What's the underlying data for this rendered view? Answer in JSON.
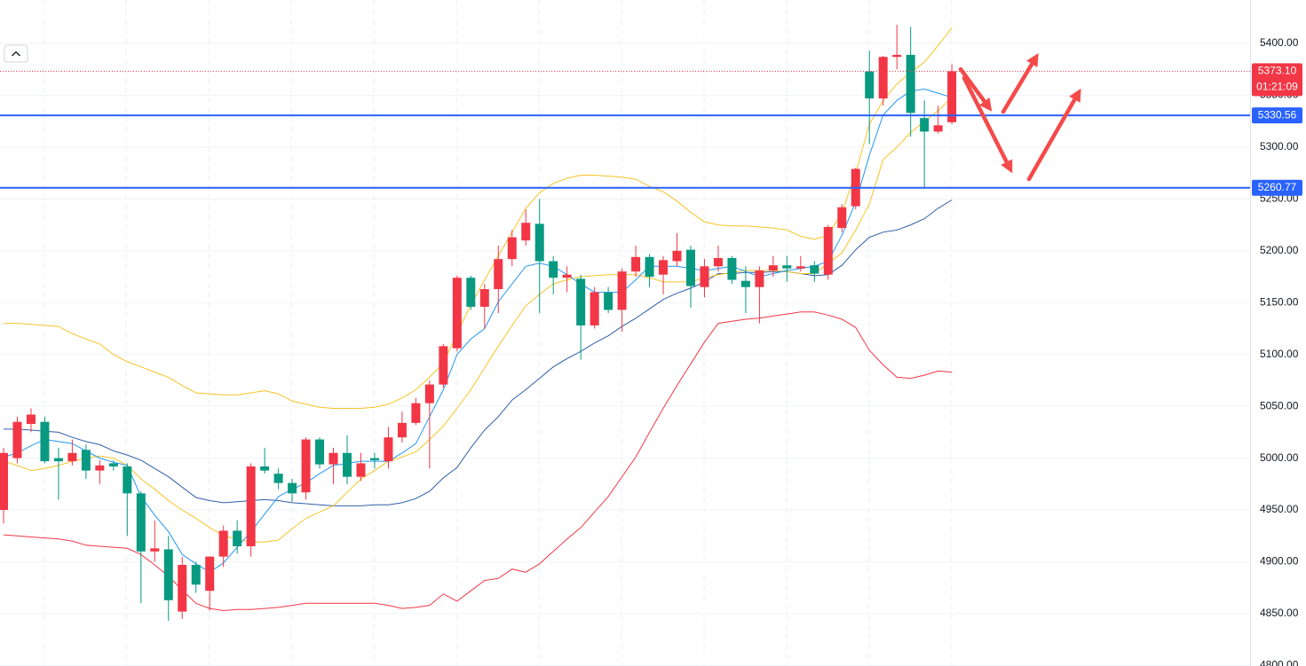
{
  "chart_data": {
    "type": "candlestick",
    "ylim": [
      4799.5,
      5441.9
    ],
    "yticks": [
      {
        "value": 4800,
        "label": "4800.00"
      },
      {
        "value": 4850,
        "label": "4850.00"
      },
      {
        "value": 4900,
        "label": "4900.00"
      },
      {
        "value": 4950,
        "label": "4950.00"
      },
      {
        "value": 5000,
        "label": "5000.00"
      },
      {
        "value": 5050,
        "label": "5050.00"
      },
      {
        "value": 5100,
        "label": "5100.00"
      },
      {
        "value": 5150,
        "label": "5150.00"
      },
      {
        "value": 5200,
        "label": "5200.00"
      },
      {
        "value": 5250,
        "label": "5250.00"
      },
      {
        "value": 5300,
        "label": "5300.00"
      },
      {
        "value": 5350,
        "label": "5350.00"
      },
      {
        "value": 5400,
        "label": "5400.00"
      }
    ],
    "grid": true,
    "up_color": "#f23645",
    "down_color": "#089981",
    "open": [
      4950,
      5000,
      5033,
      5035,
      5000,
      4997,
      5008,
      4988,
      4995,
      4992,
      4966,
      4910,
      4912,
      4852,
      4897,
      4872,
      4905,
      4930,
      4915,
      4992,
      4985,
      4976,
      4967,
      5018,
      4994,
      5005,
      4982,
      5000,
      4997,
      5020,
      5034,
      5053,
      5071,
      5106,
      5174,
      5146,
      5163,
      5192,
      5210,
      5226,
      5190,
      5174,
      5173,
      5128,
      5160,
      5143,
      5180,
      5194,
      5177,
      5190,
      5201,
      5165,
      5185,
      5193,
      5171,
      5165,
      5181,
      5186,
      5183,
      5186,
      5177,
      5222,
      5243,
      5373,
      5347,
      5387,
      5389,
      5328,
      5315,
      5324
    ],
    "high": [
      5010,
      5040,
      5048,
      5040,
      5010,
      5018,
      5013,
      4998,
      4998,
      4995,
      4968,
      4940,
      4925,
      4905,
      4900,
      4905,
      4935,
      4940,
      4995,
      5010,
      4990,
      4980,
      5020,
      5020,
      5010,
      5022,
      5005,
      5005,
      5030,
      5045,
      5058,
      5075,
      5110,
      5176,
      5176,
      5168,
      5205,
      5220,
      5240,
      5250,
      5195,
      5185,
      5177,
      5165,
      5165,
      5183,
      5205,
      5197,
      5195,
      5217,
      5205,
      5192,
      5205,
      5195,
      5185,
      5185,
      5195,
      5195,
      5195,
      5190,
      5225,
      5245,
      5280,
      5393,
      5388,
      5418,
      5416,
      5345,
      5340,
      5380
    ],
    "low": [
      4937,
      4995,
      5025,
      4995,
      4960,
      4993,
      4980,
      4975,
      4988,
      4925,
      4860,
      4900,
      4843,
      4845,
      4870,
      4853,
      4895,
      4908,
      4905,
      4985,
      4970,
      4958,
      4960,
      4990,
      4975,
      4975,
      4978,
      4990,
      4990,
      5015,
      5032,
      4990,
      5068,
      5103,
      5143,
      5125,
      5140,
      5185,
      5205,
      5140,
      5158,
      5160,
      5095,
      5125,
      5140,
      5122,
      5175,
      5165,
      5158,
      5185,
      5145,
      5155,
      5180,
      5168,
      5140,
      5130,
      5175,
      5170,
      5180,
      5170,
      5172,
      5218,
      5240,
      5303,
      5340,
      5375,
      5310,
      5260,
      5313,
      5322
    ],
    "close": [
      5005,
      5035,
      5042,
      4997,
      4997,
      5005,
      4988,
      4993,
      4992,
      4966,
      4910,
      4913,
      4863,
      4897,
      4878,
      4905,
      4930,
      4915,
      4992,
      4988,
      4976,
      4966,
      5018,
      4994,
      5005,
      4982,
      4995,
      4998,
      5020,
      5034,
      5053,
      5071,
      5108,
      5174,
      5146,
      5163,
      5192,
      5213,
      5227,
      5190,
      5174,
      5177,
      5128,
      5160,
      5143,
      5180,
      5194,
      5175,
      5191,
      5200,
      5166,
      5185,
      5193,
      5172,
      5165,
      5181,
      5186,
      5183,
      5185,
      5178,
      5223,
      5242,
      5279,
      5347,
      5387,
      5389,
      5333,
      5315,
      5321,
      5373.1
    ],
    "lines": [
      {
        "color": "#f7c325",
        "values": [
          5130,
          5130,
          5129,
          5128,
          5127,
          5120,
          5115,
          5110,
          5100,
          5093,
          5088,
          5083,
          5078,
          5070,
          5063,
          5062,
          5061,
          5061,
          5063,
          5065,
          5062,
          5055,
          5052,
          5049,
          5048,
          5048,
          5048,
          5049,
          5052,
          5058,
          5066,
          5078,
          5092,
          5120,
          5148,
          5172,
          5195,
          5218,
          5241,
          5256,
          5265,
          5270,
          5273,
          5273,
          5272,
          5271,
          5269,
          5262,
          5257,
          5248,
          5237,
          5228,
          5225,
          5224,
          5224,
          5223,
          5222,
          5220,
          5214,
          5211,
          5215,
          5237,
          5275,
          5322,
          5345,
          5361,
          5372,
          5382,
          5398,
          5415
        ]
      },
      {
        "color": "#f23645",
        "values": [
          4926,
          4925,
          4924,
          4923,
          4922,
          4920,
          4916,
          4915,
          4914,
          4913,
          4907,
          4897,
          4886,
          4873,
          4860,
          4855,
          4853,
          4854,
          4854,
          4855,
          4856,
          4858,
          4860,
          4860,
          4860,
          4860,
          4860,
          4860,
          4858,
          4855,
          4856,
          4858,
          4869,
          4862,
          4872,
          4882,
          4884,
          4893,
          4890,
          4898,
          4910,
          4922,
          4933,
          4948,
          4963,
          4982,
          5001,
          5025,
          5048,
          5070,
          5091,
          5112,
          5130,
          5132,
          5134,
          5135,
          5137,
          5139,
          5141,
          5141,
          5138,
          5134,
          5126,
          5104,
          5090,
          5078,
          5077,
          5080,
          5084,
          5083
        ]
      },
      {
        "color": "#2f5fa8",
        "values": [
          5028,
          5028,
          5027,
          5026,
          5025,
          5020,
          5016,
          5013,
          5007,
          5003,
          4998,
          4990,
          4982,
          4972,
          4962,
          4959,
          4957,
          4958,
          4959,
          4960,
          4959,
          4957,
          4956,
          4955,
          4954,
          4954,
          4954,
          4955,
          4955,
          4957,
          4961,
          4968,
          4981,
          4991,
          5010,
          5027,
          5040,
          5056,
          5066,
          5077,
          5088,
          5096,
          5103,
          5111,
          5118,
          5127,
          5135,
          5144,
          5153,
          5159,
          5164,
          5170,
          5178,
          5178,
          5179,
          5179,
          5180,
          5180,
          5178,
          5176,
          5177,
          5186,
          5201,
          5213,
          5218,
          5220,
          5225,
          5231,
          5241,
          5249
        ]
      },
      {
        "color": "#f7c325",
        "values": [
          4997,
          4993,
          4988,
          4990,
          4993,
          4997,
          5000,
          5002,
          5000,
          4993,
          4980,
          4970,
          4959,
          4950,
          4942,
          4933,
          4925,
          4922,
          4919,
          4919,
          4921,
          4932,
          4942,
          4948,
          4954,
          4967,
          4980,
          4988,
          4997,
          5001,
          5006,
          5018,
          5031,
          5048,
          5066,
          5087,
          5108,
          5128,
          5147,
          5158,
          5168,
          5172,
          5175,
          5176,
          5177,
          5177,
          5177,
          5174,
          5170,
          5170,
          5170,
          5174,
          5177,
          5179,
          5181,
          5181,
          5181,
          5180,
          5178,
          5178,
          5188,
          5198,
          5220,
          5245,
          5288,
          5300,
          5314,
          5325,
          5335,
          5348
        ]
      },
      {
        "color": "#2196f3",
        "values": [
          5001,
          5005,
          5012,
          5018,
          5016,
          5014,
          5007,
          5000,
          4996,
          4993,
          4963,
          4945,
          4929,
          4907,
          4898,
          4890,
          4899,
          4914,
          4929,
          4946,
          4963,
          4970,
          4976,
          4985,
          4993,
          4995,
          4997,
          4997,
          4997,
          5005,
          5014,
          5040,
          5066,
          5100,
          5115,
          5125,
          5151,
          5168,
          5185,
          5188,
          5185,
          5177,
          5168,
          5160,
          5160,
          5160,
          5172,
          5185,
          5185,
          5185,
          5183,
          5181,
          5183,
          5185,
          5180,
          5175,
          5178,
          5181,
          5183,
          5185,
          5190,
          5215,
          5247,
          5292,
          5331,
          5345,
          5354,
          5356,
          5352,
          5348
        ]
      }
    ],
    "price_lines": [
      {
        "value": 5330.56,
        "color": "#2962ff"
      },
      {
        "value": 5260.77,
        "color": "#2962ff"
      }
    ],
    "last_price": {
      "value": 5373.1,
      "label": "5373.10",
      "color": "#f23645"
    },
    "countdown": "01:21:09"
  }
}
